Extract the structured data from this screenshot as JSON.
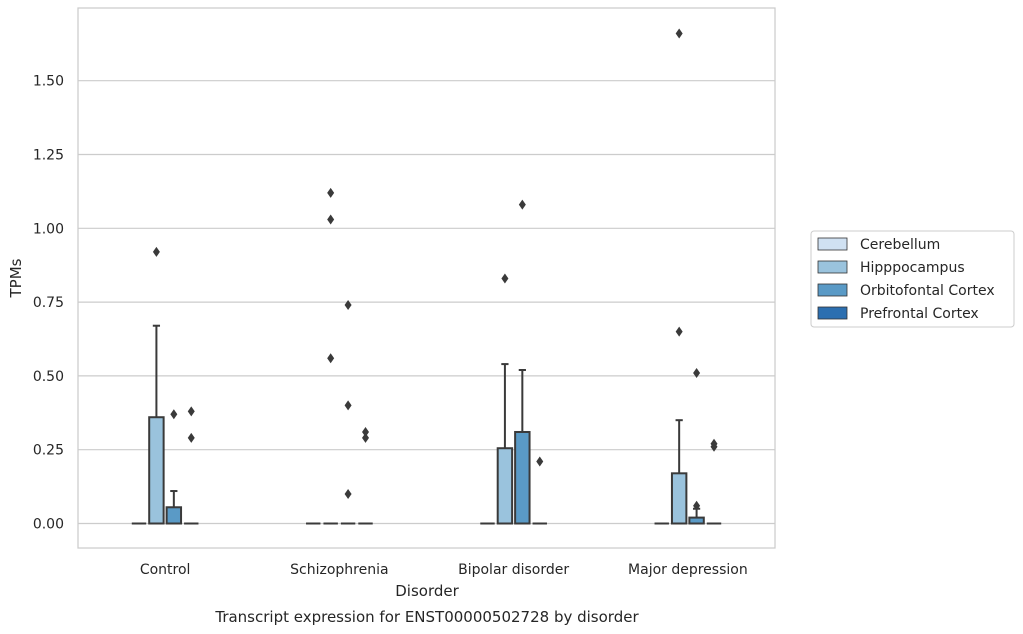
{
  "chart_data": {
    "type": "box",
    "title": "Transcript expression for ENST00000502728 by disorder",
    "xlabel": "Disorder",
    "ylabel": "TPMs",
    "categories": [
      "Control",
      "Schizophrenia",
      "Bipolar disorder",
      "Major depression"
    ],
    "ylim": [
      -0.08,
      1.75
    ],
    "yticks": [
      0.0,
      0.25,
      0.5,
      0.75,
      1.0,
      1.25,
      1.5
    ],
    "ytick_labels": [
      "0.00",
      "0.25",
      "0.50",
      "0.75",
      "1.00",
      "1.25",
      "1.50"
    ],
    "grid": true,
    "legend_placement": "right",
    "series": [
      {
        "name": "Cerebellum",
        "color": "#d0e1f2",
        "boxes": [
          {
            "q1": 0,
            "median": 0,
            "q3": 0,
            "whisker_low": 0,
            "whisker_high": 0,
            "outliers": []
          },
          {
            "q1": 0,
            "median": 0,
            "q3": 0,
            "whisker_low": 0,
            "whisker_high": 0,
            "outliers": []
          },
          {
            "q1": 0,
            "median": 0,
            "q3": 0,
            "whisker_low": 0,
            "whisker_high": 0,
            "outliers": []
          },
          {
            "q1": 0,
            "median": 0,
            "q3": 0,
            "whisker_low": 0,
            "whisker_high": 0,
            "outliers": []
          }
        ]
      },
      {
        "name": "Hipppocampus",
        "color": "#9ac3dd",
        "boxes": [
          {
            "q1": 0,
            "median": 0,
            "q3": 0.36,
            "whisker_low": 0,
            "whisker_high": 0.67,
            "outliers": [
              0.92
            ]
          },
          {
            "q1": 0,
            "median": 0,
            "q3": 0,
            "whisker_low": 0,
            "whisker_high": 0,
            "outliers": [
              0.56,
              1.03,
              1.12
            ]
          },
          {
            "q1": 0,
            "median": 0,
            "q3": 0.255,
            "whisker_low": 0,
            "whisker_high": 0.54,
            "outliers": [
              0.83
            ]
          },
          {
            "q1": 0,
            "median": 0,
            "q3": 0.17,
            "whisker_low": 0,
            "whisker_high": 0.35,
            "outliers": [
              0.65,
              1.66
            ]
          }
        ]
      },
      {
        "name": "Orbitofontal Cortex",
        "color": "#5a9ac6",
        "boxes": [
          {
            "q1": 0,
            "median": 0,
            "q3": 0.055,
            "whisker_low": 0,
            "whisker_high": 0.11,
            "outliers": [
              0.37
            ]
          },
          {
            "q1": 0,
            "median": 0,
            "q3": 0,
            "whisker_low": 0,
            "whisker_high": 0,
            "outliers": [
              0.1,
              0.4,
              0.74
            ]
          },
          {
            "q1": 0,
            "median": 0,
            "q3": 0.31,
            "whisker_low": 0,
            "whisker_high": 0.52,
            "outliers": [
              1.08
            ]
          },
          {
            "q1": 0,
            "median": 0,
            "q3": 0.02,
            "whisker_low": 0,
            "whisker_high": 0.05,
            "outliers": [
              0.06,
              0.51
            ]
          }
        ]
      },
      {
        "name": "Prefrontal Cortex",
        "color": "#2c6fb0",
        "boxes": [
          {
            "q1": 0,
            "median": 0,
            "q3": 0,
            "whisker_low": 0,
            "whisker_high": 0,
            "outliers": [
              0.29,
              0.38
            ]
          },
          {
            "q1": 0,
            "median": 0,
            "q3": 0,
            "whisker_low": 0,
            "whisker_high": 0,
            "outliers": [
              0.29,
              0.31
            ]
          },
          {
            "q1": 0,
            "median": 0,
            "q3": 0,
            "whisker_low": 0,
            "whisker_high": 0,
            "outliers": [
              0.21
            ]
          },
          {
            "q1": 0,
            "median": 0,
            "q3": 0,
            "whisker_low": 0,
            "whisker_high": 0,
            "outliers": [
              0.26,
              0.27
            ]
          }
        ]
      }
    ]
  }
}
